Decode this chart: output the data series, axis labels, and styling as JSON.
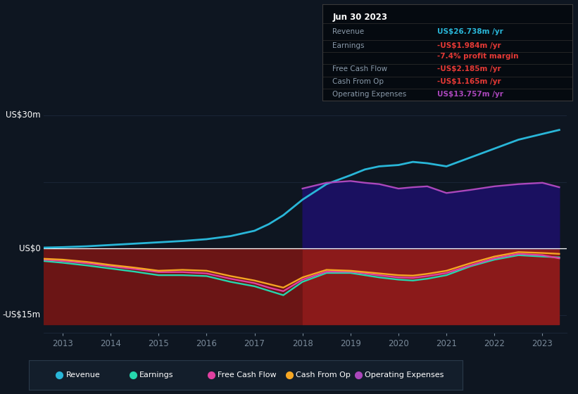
{
  "background_color": "#0e1621",
  "plot_bg_color": "#0e1621",
  "years": [
    2012.6,
    2013.0,
    2013.5,
    2014.0,
    2014.5,
    2015.0,
    2015.5,
    2016.0,
    2016.5,
    2017.0,
    2017.3,
    2017.6,
    2018.0,
    2018.5,
    2019.0,
    2019.3,
    2019.6,
    2020.0,
    2020.3,
    2020.6,
    2021.0,
    2021.5,
    2022.0,
    2022.5,
    2023.0,
    2023.35
  ],
  "revenue": [
    0.2,
    0.3,
    0.5,
    0.8,
    1.1,
    1.4,
    1.7,
    2.1,
    2.8,
    4.0,
    5.5,
    7.5,
    11.0,
    14.5,
    16.5,
    17.8,
    18.5,
    18.8,
    19.5,
    19.2,
    18.5,
    20.5,
    22.5,
    24.5,
    25.8,
    26.7
  ],
  "earnings": [
    -2.8,
    -3.2,
    -3.8,
    -4.5,
    -5.2,
    -6.0,
    -6.0,
    -6.2,
    -7.5,
    -8.5,
    -9.5,
    -10.5,
    -7.5,
    -5.5,
    -5.5,
    -6.0,
    -6.5,
    -7.0,
    -7.2,
    -6.8,
    -6.0,
    -4.0,
    -2.5,
    -1.5,
    -1.8,
    -2.0
  ],
  "free_cash_flow": [
    -2.5,
    -2.8,
    -3.3,
    -4.0,
    -4.6,
    -5.3,
    -5.3,
    -5.6,
    -6.8,
    -7.8,
    -8.8,
    -9.6,
    -7.0,
    -5.2,
    -5.2,
    -5.6,
    -6.0,
    -6.5,
    -6.6,
    -6.2,
    -5.5,
    -3.8,
    -2.2,
    -1.2,
    -1.5,
    -2.2
  ],
  "cash_from_op": [
    -2.3,
    -2.5,
    -3.0,
    -3.7,
    -4.3,
    -5.0,
    -4.8,
    -5.0,
    -6.2,
    -7.2,
    -8.0,
    -8.8,
    -6.5,
    -4.8,
    -5.0,
    -5.3,
    -5.6,
    -6.0,
    -6.1,
    -5.7,
    -5.0,
    -3.3,
    -1.8,
    -0.8,
    -1.0,
    -1.2
  ],
  "op_expenses_x": [
    2018.0,
    2018.5,
    2019.0,
    2019.3,
    2019.6,
    2020.0,
    2020.3,
    2020.6,
    2021.0,
    2021.5,
    2022.0,
    2022.5,
    2023.0,
    2023.35
  ],
  "op_expenses_y": [
    13.5,
    14.8,
    15.2,
    14.8,
    14.5,
    13.5,
    13.8,
    14.0,
    12.5,
    13.2,
    14.0,
    14.5,
    14.8,
    13.8
  ],
  "colors": {
    "revenue": "#29b6d8",
    "earnings": "#26d7ae",
    "free_cash_flow": "#e040a0",
    "cash_from_op": "#f5a623",
    "op_expenses": "#ab47bc",
    "fill_positive": "#1a1060",
    "fill_negative_pre": "#6b1515",
    "fill_negative_post": "#8b1a1a",
    "zero_line": "#ffffff",
    "grid_line": "#1a2535",
    "text_dim": "#7a8a9a",
    "text_white": "#ffffff",
    "bg": "#0e1621",
    "legend_bg": "#131e2b",
    "legend_border": "#2a3a4a",
    "table_bg": "#050a10",
    "table_border": "#3a3a3a"
  },
  "xlim": [
    2012.6,
    2023.5
  ],
  "ylim": [
    -19,
    32
  ],
  "xticks": [
    2013,
    2014,
    2015,
    2016,
    2017,
    2018,
    2019,
    2020,
    2021,
    2022,
    2023
  ],
  "shade_split": 2018.0,
  "y_label_30": "US$30m",
  "y_label_0": "US$0",
  "y_label_neg15": "-US$15m",
  "y_val_30": 30,
  "y_val_0": 0,
  "y_val_neg15": -15,
  "table_title": "Jun 30 2023",
  "table_rows": [
    {
      "label": "Revenue",
      "value": "US$26.738m /yr",
      "vcolor": "#29b6d8",
      "sub": false
    },
    {
      "label": "Earnings",
      "value": "-US$1.984m /yr",
      "vcolor": "#e53935",
      "sub": false
    },
    {
      "label": "",
      "value": "-7.4% profit margin",
      "vcolor": "#e53935",
      "sub": true
    },
    {
      "label": "Free Cash Flow",
      "value": "-US$2.185m /yr",
      "vcolor": "#e53935",
      "sub": false
    },
    {
      "label": "Cash From Op",
      "value": "-US$1.165m /yr",
      "vcolor": "#e53935",
      "sub": false
    },
    {
      "label": "Operating Expenses",
      "value": "US$13.757m /yr",
      "vcolor": "#ab47bc",
      "sub": false
    }
  ],
  "legend_items": [
    {
      "label": "Revenue",
      "color": "#29b6d8"
    },
    {
      "label": "Earnings",
      "color": "#26d7ae"
    },
    {
      "label": "Free Cash Flow",
      "color": "#e040a0"
    },
    {
      "label": "Cash From Op",
      "color": "#f5a623"
    },
    {
      "label": "Operating Expenses",
      "color": "#ab47bc"
    }
  ]
}
